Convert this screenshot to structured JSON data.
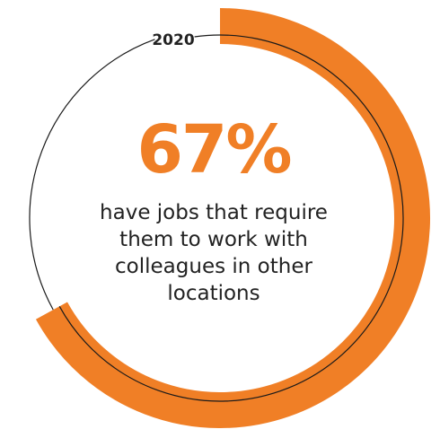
{
  "chart_data": {
    "type": "donut",
    "label": "2020",
    "value": 67,
    "unit": "%",
    "value_text": "67%",
    "caption": "have jobs that require them to work with colleagues in other locations",
    "colors": {
      "accent": "#f07f26",
      "line": "#1a1a1a",
      "text": "#222222"
    }
  }
}
